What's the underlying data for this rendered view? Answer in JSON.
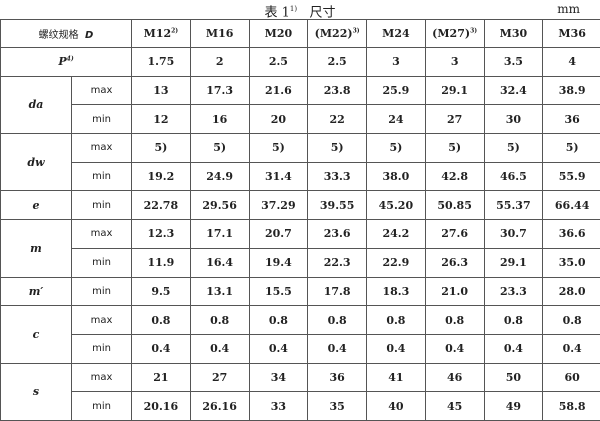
{
  "title": {
    "text": "表 1",
    "note": "1)",
    "suffix": "尺寸",
    "unit": "mm"
  },
  "header": {
    "label": "螺纹规格",
    "symbol": "D",
    "sizes": [
      {
        "t": "M12",
        "n": "2)"
      },
      {
        "t": "M16",
        "n": ""
      },
      {
        "t": "M20",
        "n": ""
      },
      {
        "t": "(M22)",
        "n": "3)"
      },
      {
        "t": "M24",
        "n": ""
      },
      {
        "t": "(M27)",
        "n": "3)"
      },
      {
        "t": "M30",
        "n": ""
      },
      {
        "t": "M36",
        "n": ""
      }
    ]
  },
  "rows": [
    {
      "param": "P",
      "note": "4)",
      "sub": "",
      "values": [
        "1.75",
        "2",
        "2.5",
        "2.5",
        "3",
        "3",
        "3.5",
        "4"
      ]
    },
    {
      "param": "da",
      "sub": "max",
      "values": [
        "13",
        "17.3",
        "21.6",
        "23.8",
        "25.9",
        "29.1",
        "32.4",
        "38.9"
      ]
    },
    {
      "param": "",
      "sub": "min",
      "values": [
        "12",
        "16",
        "20",
        "22",
        "24",
        "27",
        "30",
        "36"
      ]
    },
    {
      "param": "dw",
      "sub": "max",
      "values": [
        "5)",
        "5)",
        "5)",
        "5)",
        "5)",
        "5)",
        "5)",
        "5)"
      ]
    },
    {
      "param": "",
      "sub": "min",
      "values": [
        "19.2",
        "24.9",
        "31.4",
        "33.3",
        "38.0",
        "42.8",
        "46.5",
        "55.9"
      ]
    },
    {
      "param": "e",
      "sub": "min",
      "values": [
        "22.78",
        "29.56",
        "37.29",
        "39.55",
        "45.20",
        "50.85",
        "55.37",
        "66.44"
      ]
    },
    {
      "param": "m",
      "sub": "max",
      "values": [
        "12.3",
        "17.1",
        "20.7",
        "23.6",
        "24.2",
        "27.6",
        "30.7",
        "36.6"
      ]
    },
    {
      "param": "",
      "sub": "min",
      "values": [
        "11.9",
        "16.4",
        "19.4",
        "22.3",
        "22.9",
        "26.3",
        "29.1",
        "35.0"
      ]
    },
    {
      "param": "m′",
      "sub": "min",
      "values": [
        "9.5",
        "13.1",
        "15.5",
        "17.8",
        "18.3",
        "21.0",
        "23.3",
        "28.0"
      ]
    },
    {
      "param": "c",
      "sub": "max",
      "values": [
        "0.8",
        "0.8",
        "0.8",
        "0.8",
        "0.8",
        "0.8",
        "0.8",
        "0.8"
      ]
    },
    {
      "param": "",
      "sub": "min",
      "values": [
        "0.4",
        "0.4",
        "0.4",
        "0.4",
        "0.4",
        "0.4",
        "0.4",
        "0.4"
      ]
    },
    {
      "param": "s",
      "sub": "max",
      "values": [
        "21",
        "27",
        "34",
        "36",
        "41",
        "46",
        "50",
        "60"
      ]
    },
    {
      "param": "",
      "sub": "min",
      "values": [
        "20.16",
        "26.16",
        "33",
        "35",
        "40",
        "45",
        "49",
        "58.8"
      ]
    }
  ]
}
